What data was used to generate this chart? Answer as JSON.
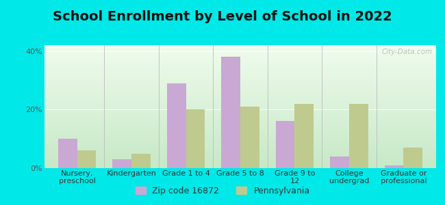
{
  "title": "School Enrollment by Level of School in 2022",
  "categories": [
    "Nursery,\npreschool",
    "Kindergarten",
    "Grade 1 to 4",
    "Grade 5 to 8",
    "Grade 9 to\n12",
    "College\nundergrad",
    "Graduate or\nprofessional"
  ],
  "zip_values": [
    10,
    3,
    29,
    38,
    16,
    4,
    1
  ],
  "pa_values": [
    6,
    5,
    20,
    21,
    22,
    22,
    7
  ],
  "zip_color": "#c9a8d4",
  "pa_color": "#bfca8e",
  "background_outer": "#00e8e8",
  "ylim": [
    0,
    42
  ],
  "yticks": [
    0,
    20,
    40
  ],
  "ytick_labels": [
    "0%",
    "20%",
    "40%"
  ],
  "legend_zip_label": "Zip code 16872",
  "legend_pa_label": "Pennsylvania",
  "bar_width": 0.35,
  "watermark": "City-Data.com",
  "title_fontsize": 14,
  "tick_fontsize": 8,
  "legend_fontsize": 9,
  "grad_top_left": "#d8edd8",
  "grad_top_right": "#f0f8f0",
  "grad_bottom_left": "#c0e0c0",
  "grad_bottom_right": "#e8f5e8"
}
